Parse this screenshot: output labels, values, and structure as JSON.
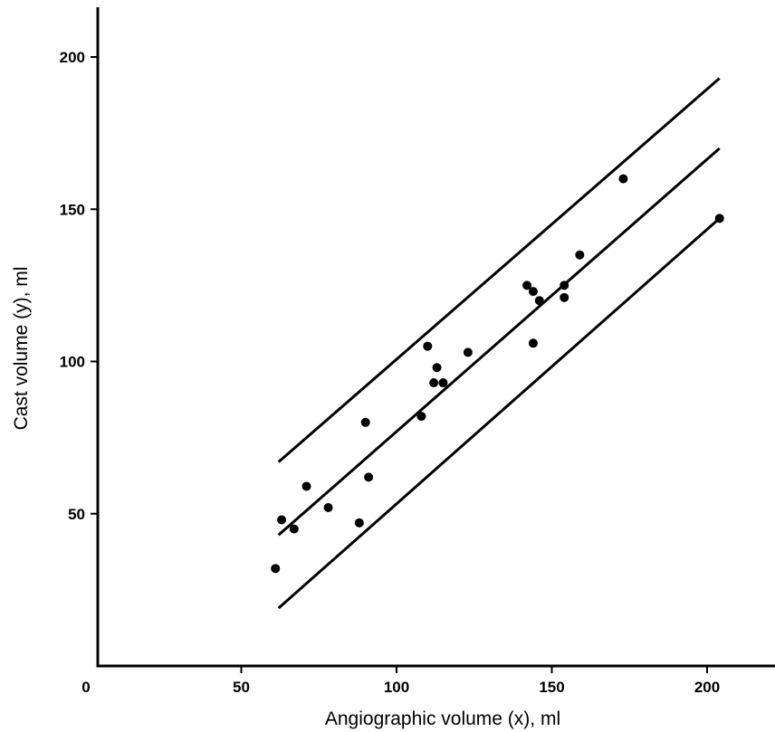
{
  "chart_data": {
    "type": "scatter",
    "title": "",
    "xlabel": "Angiographic volume (x), ml",
    "ylabel": "Cast volume (y), ml",
    "xlim": [
      0,
      220
    ],
    "ylim": [
      0,
      220
    ],
    "x_ticks": [
      0,
      50,
      100,
      150,
      200
    ],
    "y_ticks": [
      50,
      100,
      150,
      200
    ],
    "x_tick_labels": [
      "0",
      "50",
      "100",
      "150",
      "200"
    ],
    "y_tick_labels": [
      "50",
      "100",
      "150",
      "200"
    ],
    "grid": false,
    "legend": "none",
    "points": [
      {
        "x": 61,
        "y": 32
      },
      {
        "x": 63,
        "y": 48
      },
      {
        "x": 67,
        "y": 45
      },
      {
        "x": 71,
        "y": 59
      },
      {
        "x": 78,
        "y": 52
      },
      {
        "x": 88,
        "y": 47
      },
      {
        "x": 90,
        "y": 80
      },
      {
        "x": 91,
        "y": 62
      },
      {
        "x": 108,
        "y": 82
      },
      {
        "x": 110,
        "y": 105
      },
      {
        "x": 112,
        "y": 93
      },
      {
        "x": 113,
        "y": 98
      },
      {
        "x": 115,
        "y": 93
      },
      {
        "x": 123,
        "y": 103
      },
      {
        "x": 142,
        "y": 125
      },
      {
        "x": 144,
        "y": 106
      },
      {
        "x": 144,
        "y": 123
      },
      {
        "x": 146,
        "y": 120
      },
      {
        "x": 154,
        "y": 125
      },
      {
        "x": 154,
        "y": 121
      },
      {
        "x": 159,
        "y": 135
      },
      {
        "x": 173,
        "y": 160
      },
      {
        "x": 204,
        "y": 147
      }
    ],
    "lines": [
      {
        "x": [
          62,
          204
        ],
        "y": [
          67,
          193
        ]
      },
      {
        "x": [
          62,
          204
        ],
        "y": [
          43,
          170
        ]
      },
      {
        "x": [
          62,
          204
        ],
        "y": [
          19,
          147
        ]
      }
    ],
    "marker_color": "#000000",
    "line_color": "#000000"
  }
}
